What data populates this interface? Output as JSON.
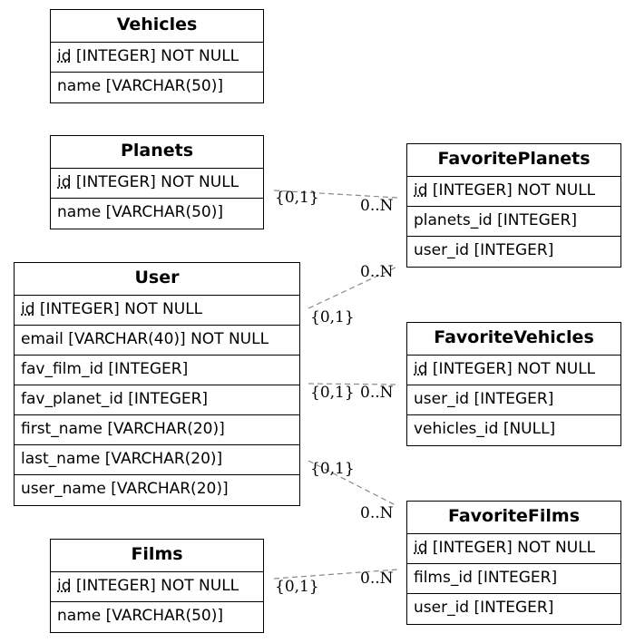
{
  "entities": {
    "vehicles": {
      "name": "Vehicles",
      "rows": [
        {
          "pk": "id",
          "rest": " [INTEGER] NOT NULL"
        },
        {
          "pk": "",
          "rest": "name [VARCHAR(50)]"
        }
      ]
    },
    "planets": {
      "name": "Planets",
      "rows": [
        {
          "pk": "id",
          "rest": " [INTEGER] NOT NULL"
        },
        {
          "pk": "",
          "rest": "name [VARCHAR(50)]"
        }
      ]
    },
    "user": {
      "name": "User",
      "rows": [
        {
          "pk": "id",
          "rest": " [INTEGER] NOT NULL"
        },
        {
          "pk": "",
          "rest": "email [VARCHAR(40)] NOT NULL"
        },
        {
          "pk": "",
          "rest": "fav_film_id [INTEGER]"
        },
        {
          "pk": "",
          "rest": "fav_planet_id [INTEGER]"
        },
        {
          "pk": "",
          "rest": "first_name [VARCHAR(20)]"
        },
        {
          "pk": "",
          "rest": "last_name [VARCHAR(20)]"
        },
        {
          "pk": "",
          "rest": "user_name [VARCHAR(20)]"
        }
      ]
    },
    "films": {
      "name": "Films",
      "rows": [
        {
          "pk": "id",
          "rest": " [INTEGER] NOT NULL"
        },
        {
          "pk": "",
          "rest": "name [VARCHAR(50)]"
        }
      ]
    },
    "favorite_planets": {
      "name": "FavoritePlanets",
      "rows": [
        {
          "pk": "id",
          "rest": " [INTEGER] NOT NULL"
        },
        {
          "pk": "",
          "rest": "planets_id [INTEGER]"
        },
        {
          "pk": "",
          "rest": "user_id [INTEGER]"
        }
      ]
    },
    "favorite_vehicles": {
      "name": "FavoriteVehicles",
      "rows": [
        {
          "pk": "id",
          "rest": " [INTEGER] NOT NULL"
        },
        {
          "pk": "",
          "rest": "user_id [INTEGER]"
        },
        {
          "pk": "",
          "rest": "vehicles_id [NULL]"
        }
      ]
    },
    "favorite_films": {
      "name": "FavoriteFilms",
      "rows": [
        {
          "pk": "id",
          "rest": " [INTEGER] NOT NULL"
        },
        {
          "pk": "",
          "rest": "films_id [INTEGER]"
        },
        {
          "pk": "",
          "rest": "user_id [INTEGER]"
        }
      ]
    }
  },
  "relations": [
    {
      "from": "planets",
      "to": "favorite_planets",
      "from_card": "{0,1}",
      "to_card": "0..N"
    },
    {
      "from": "user",
      "to": "favorite_planets",
      "from_card": "{0,1}",
      "to_card": "0..N"
    },
    {
      "from": "user",
      "to": "favorite_vehicles",
      "from_card": "{0,1}",
      "to_card": "0..N"
    },
    {
      "from": "user",
      "to": "favorite_films",
      "from_card": "{0,1}",
      "to_card": "0..N"
    },
    {
      "from": "films",
      "to": "favorite_films",
      "from_card": "{0,1}",
      "to_card": "0..N"
    }
  ],
  "colors": {
    "line": "#888888",
    "border": "#000000"
  }
}
